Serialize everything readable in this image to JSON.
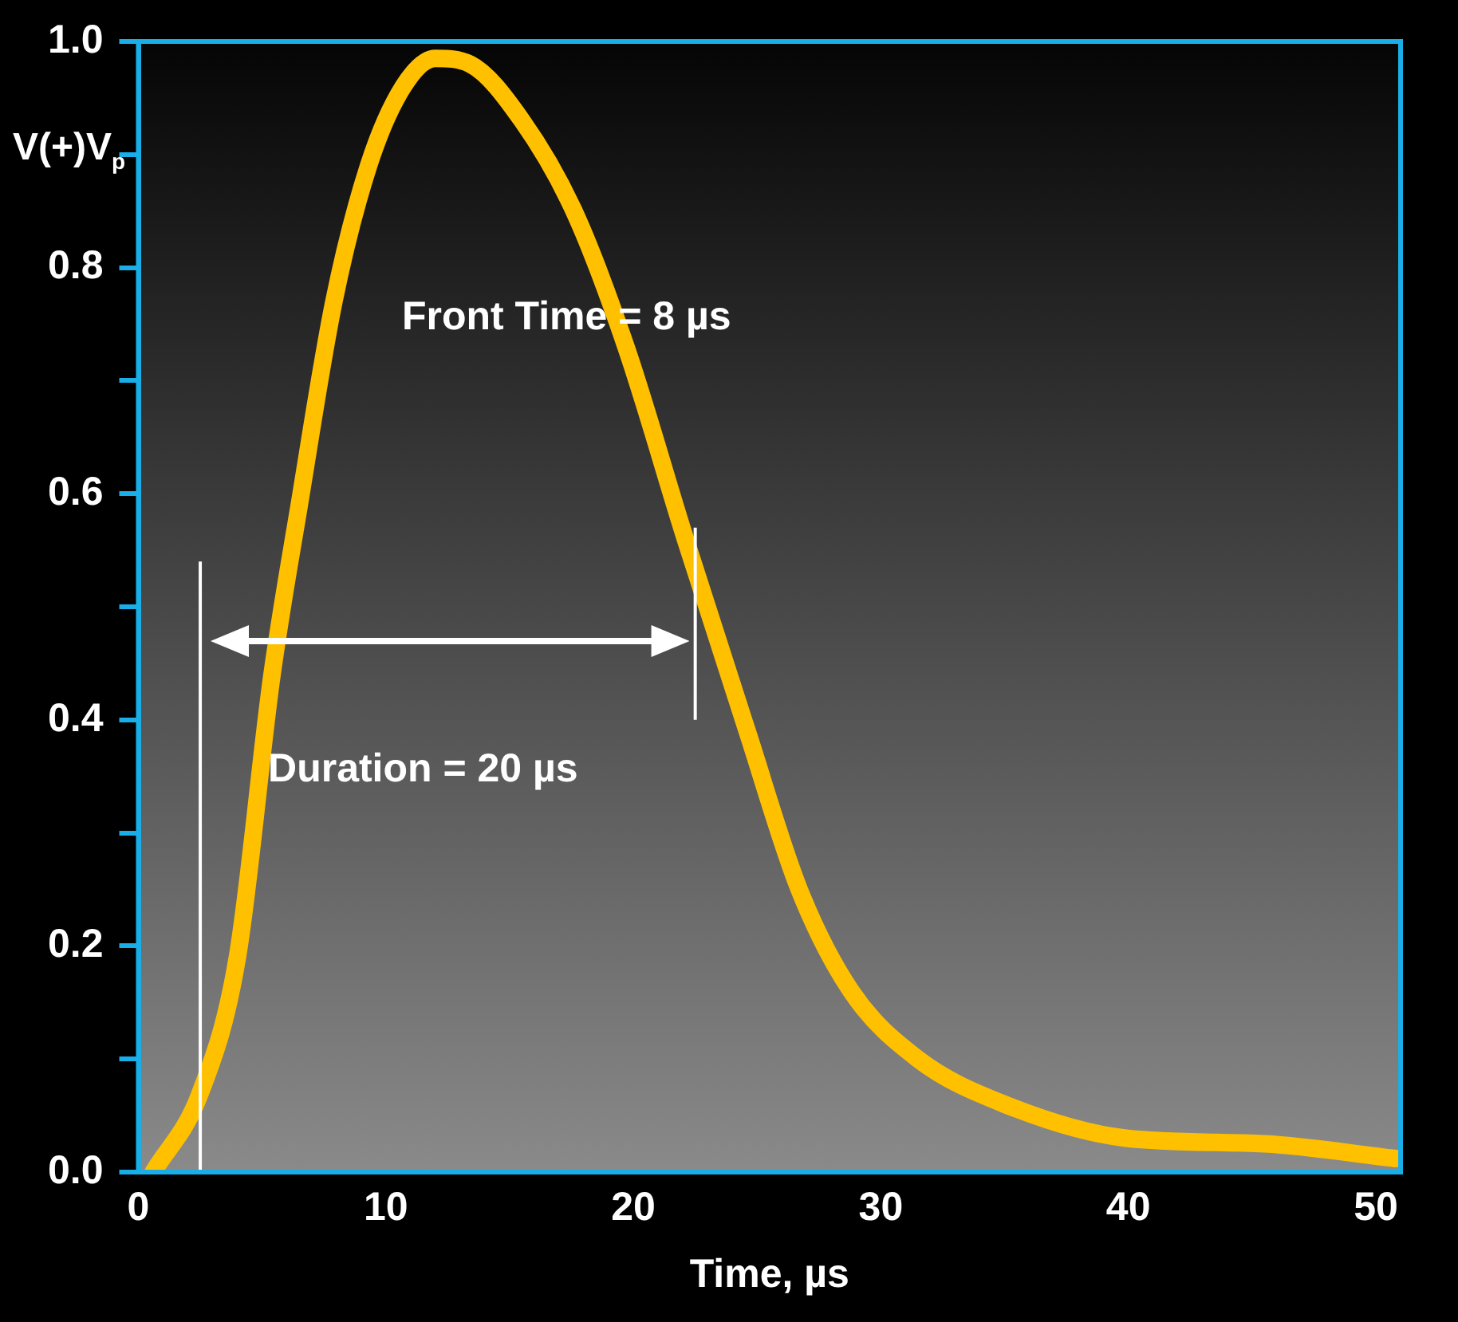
{
  "chart_data": {
    "type": "line",
    "xlabel": "Time, µs",
    "ylabel": "V(+)V$_{p}$",
    "x": [
      0.6,
      2.5,
      4.0,
      5.4,
      6.5,
      7.9,
      9.3,
      10.7,
      12.0,
      13.4,
      15.5,
      17.6,
      19.7,
      22.1,
      24.6,
      26.7,
      28.8,
      31.5,
      35,
      39.9,
      45.5,
      50.8
    ],
    "series": [
      {
        "color": "#ffc000",
        "values": [
          0.0,
          0.07,
          0.19,
          0.44,
          0.59,
          0.77,
          0.89,
          0.96,
          0.985,
          0.98,
          0.93,
          0.85,
          0.73,
          0.56,
          0.39,
          0.25,
          0.16,
          0.1,
          0.06,
          0.03,
          0.025,
          0.012
        ]
      }
    ],
    "xlim": [
      0,
      51
    ],
    "xticks": [
      0,
      10,
      20,
      30,
      40,
      50
    ],
    "ylim": [
      0,
      1
    ],
    "yticks": [
      {
        "value": 0,
        "label": "0.0"
      },
      {
        "value": 0.1,
        "label": null
      },
      0.2,
      {
        "value": 0.3,
        "label": null
      },
      0.4,
      {
        "value": 0.5,
        "label": null
      },
      0.6,
      {
        "value": 0.7,
        "label": null
      },
      0.8,
      {
        "value": 0.9,
        "label": null
      },
      {
        "value": 1,
        "label": "1.0"
      }
    ],
    "ref_lines": [
      {
        "axis": "x",
        "value": 2.5,
        "label": null,
        "color": "#ffffff"
      },
      {
        "axis": "x",
        "value": 22.5,
        "label": null,
        "color": "#ffffff"
      }
    ],
    "annotations": [
      "Front Time = 8 µs",
      "Duration = 20 µs"
    ],
    "grid": false,
    "legend": false,
    "marker": "none",
    "line_style": "solid"
  }
}
